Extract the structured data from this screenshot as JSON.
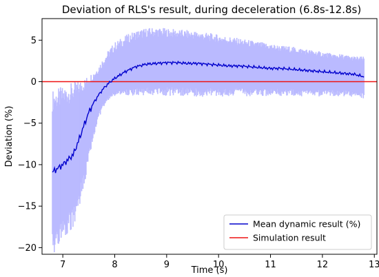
{
  "chart_data": {
    "type": "line",
    "title": "Deviation of RLS's result, during deceleration (6.8s-12.8s)",
    "xlabel": "Time (s)",
    "ylabel": "Deviation (%)",
    "xlim": [
      6.6,
      13.05
    ],
    "ylim": [
      -20.8,
      7.6
    ],
    "xticks": [
      7,
      8,
      9,
      10,
      11,
      12,
      13
    ],
    "yticks": [
      -20,
      -15,
      -10,
      -5,
      0,
      5
    ],
    "grid": false,
    "legend_position": "lower-right",
    "colors": {
      "mean": "#0000cc",
      "band": "#babaff",
      "simulation": "#ee1111"
    },
    "series": [
      {
        "name": "Mean dynamic result (%)",
        "x": [
          6.8,
          7.0,
          7.2,
          7.3,
          7.4,
          7.5,
          7.6,
          7.7,
          7.8,
          7.9,
          8.0,
          8.2,
          8.4,
          8.6,
          8.8,
          9.0,
          9.2,
          9.4,
          9.6,
          9.8,
          10.0,
          10.2,
          10.4,
          10.6,
          10.8,
          11.0,
          11.2,
          11.4,
          11.6,
          11.8,
          12.0,
          12.2,
          12.4,
          12.6,
          12.8
        ],
        "y": [
          -10.9,
          -10.0,
          -8.8,
          -7.2,
          -5.4,
          -3.7,
          -2.5,
          -1.5,
          -0.7,
          -0.1,
          0.4,
          1.2,
          1.8,
          2.1,
          2.2,
          2.3,
          2.3,
          2.2,
          2.2,
          2.1,
          2.0,
          1.9,
          1.9,
          1.8,
          1.7,
          1.6,
          1.6,
          1.5,
          1.4,
          1.3,
          1.2,
          1.1,
          1.0,
          0.9,
          0.6
        ],
        "upper": [
          -2.3,
          -1.8,
          -1.2,
          -0.8,
          -0.4,
          0.2,
          0.8,
          1.6,
          2.6,
          3.5,
          4.2,
          5.0,
          5.6,
          5.9,
          6.0,
          5.9,
          5.8,
          5.7,
          5.6,
          5.4,
          5.2,
          5.0,
          4.8,
          4.6,
          4.4,
          4.2,
          4.0,
          3.9,
          3.7,
          3.5,
          3.3,
          3.1,
          3.0,
          2.8,
          2.7
        ],
        "lower": [
          -19.7,
          -17.8,
          -16.4,
          -14.5,
          -12.0,
          -9.0,
          -6.2,
          -4.0,
          -2.6,
          -1.9,
          -1.5,
          -1.3,
          -1.3,
          -1.2,
          -1.2,
          -1.2,
          -1.2,
          -1.3,
          -1.3,
          -1.3,
          -1.3,
          -1.3,
          -1.3,
          -1.3,
          -1.3,
          -1.3,
          -1.3,
          -1.3,
          -1.4,
          -1.4,
          -1.4,
          -1.4,
          -1.4,
          -1.5,
          -1.7
        ]
      },
      {
        "name": "Simulation result",
        "y_constant": 0
      }
    ]
  }
}
